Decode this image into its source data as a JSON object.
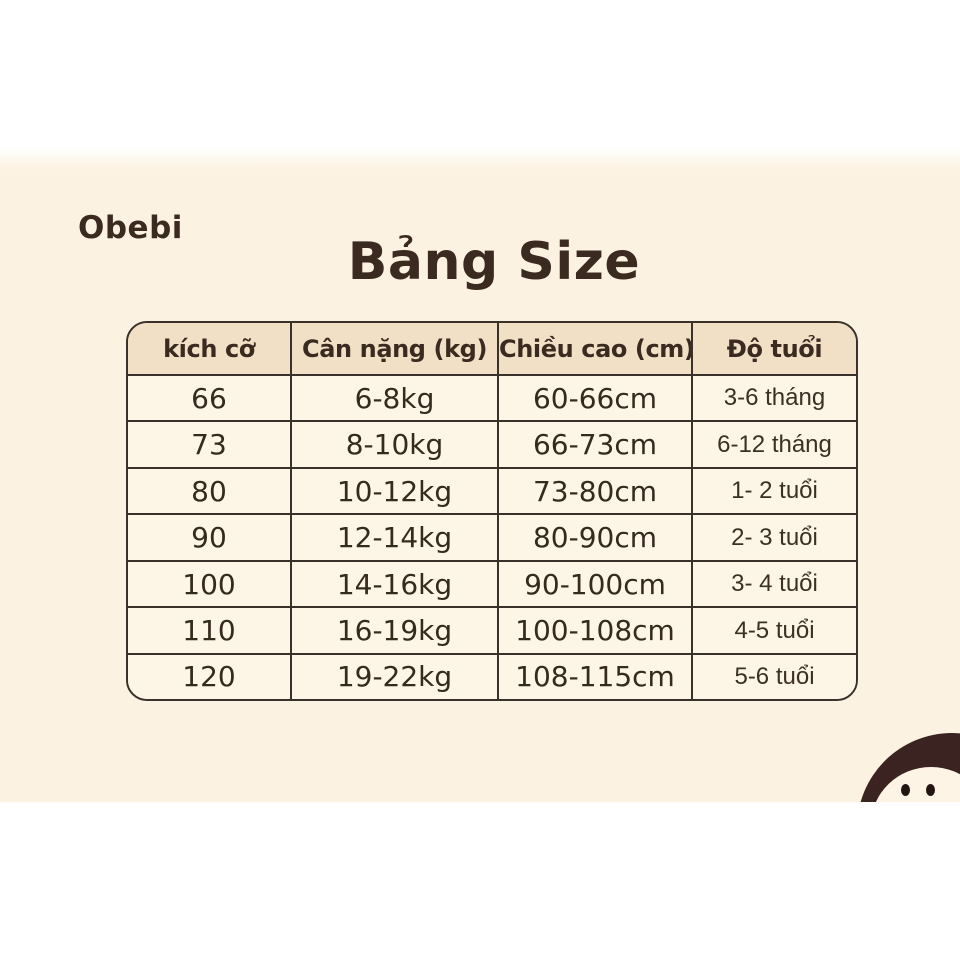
{
  "brand": {
    "logo": "Obebi"
  },
  "header": {
    "title": "Bảng Size"
  },
  "table": {
    "columns": [
      "kích cỡ",
      "Cân nặng (kg)",
      "Chiều cao (cm)",
      "Độ tuổi"
    ],
    "column_names": [
      "size",
      "weight",
      "height",
      "age"
    ],
    "rows": [
      [
        "66",
        "6-8kg",
        "60-66cm",
        "3-6 tháng"
      ],
      [
        "73",
        "8-10kg",
        "66-73cm",
        "6-12 tháng"
      ],
      [
        "80",
        "10-12kg",
        "73-80cm",
        "1- 2 tuổi"
      ],
      [
        "90",
        "12-14kg",
        "80-90cm",
        "2- 3 tuổi"
      ],
      [
        "100",
        "14-16kg",
        "90-100cm",
        "3- 4 tuổi"
      ],
      [
        "110",
        "16-19kg",
        "100-108cm",
        "4-5 tuổi"
      ],
      [
        "120",
        "19-22kg",
        "108-115cm",
        "5-6 tuổi"
      ]
    ]
  },
  "mascot": {
    "description": "obebi-mascot-head-peeking"
  },
  "colors": {
    "page-bg": "#ffffff",
    "panel-bg": "#fcf2e1",
    "header-bg": "#f1e0c5",
    "cell-bg": "#fdf5e6",
    "line": "#3a322a",
    "ink": "#3b2a20",
    "ink-soft": "#3c2f24",
    "mascot-head": "#3a2320",
    "mascot-face": "#fdf4e6",
    "mascot-eye": "#241512"
  }
}
